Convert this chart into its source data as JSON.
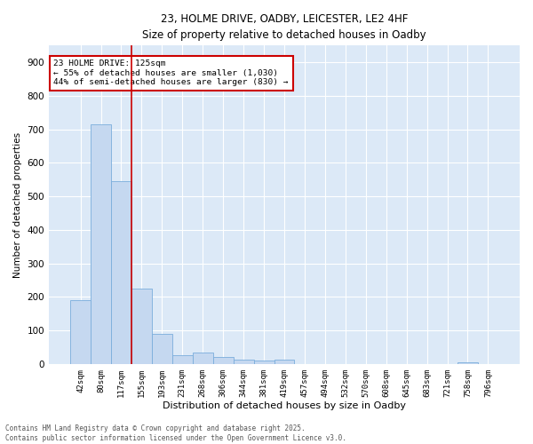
{
  "title_line1": "23, HOLME DRIVE, OADBY, LEICESTER, LE2 4HF",
  "title_line2": "Size of property relative to detached houses in Oadby",
  "xlabel": "Distribution of detached houses by size in Oadby",
  "ylabel": "Number of detached properties",
  "categories": [
    "42sqm",
    "80sqm",
    "117sqm",
    "155sqm",
    "193sqm",
    "231sqm",
    "268sqm",
    "306sqm",
    "344sqm",
    "381sqm",
    "419sqm",
    "457sqm",
    "494sqm",
    "532sqm",
    "570sqm",
    "608sqm",
    "645sqm",
    "683sqm",
    "721sqm",
    "758sqm",
    "796sqm"
  ],
  "values": [
    190,
    715,
    545,
    225,
    90,
    25,
    35,
    20,
    13,
    10,
    12,
    0,
    0,
    0,
    0,
    0,
    0,
    0,
    0,
    5,
    0
  ],
  "bar_color": "#c5d8f0",
  "bar_edge_color": "#7aaddc",
  "background_color": "#dce9f7",
  "grid_color": "#ffffff",
  "vline_color": "#cc0000",
  "annotation_text": "23 HOLME DRIVE: 125sqm\n← 55% of detached houses are smaller (1,030)\n44% of semi-detached houses are larger (830) →",
  "annotation_box_color": "#cc0000",
  "ylim": [
    0,
    950
  ],
  "yticks": [
    0,
    100,
    200,
    300,
    400,
    500,
    600,
    700,
    800,
    900
  ],
  "footer_line1": "Contains HM Land Registry data © Crown copyright and database right 2025.",
  "footer_line2": "Contains public sector information licensed under the Open Government Licence v3.0."
}
